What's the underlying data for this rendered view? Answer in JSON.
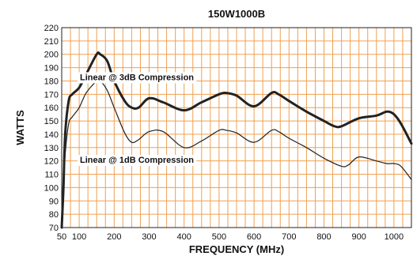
{
  "chart_data": {
    "type": "line",
    "title": "150W1000B",
    "xlabel": "FREQUENCY (MHz)",
    "ylabel": "WATTS",
    "xlim": [
      50,
      1050
    ],
    "ylim": [
      70,
      220
    ],
    "xticks": [
      50,
      100,
      200,
      300,
      400,
      500,
      600,
      700,
      800,
      900,
      1000
    ],
    "yticks": [
      70,
      80,
      90,
      100,
      110,
      120,
      130,
      140,
      150,
      160,
      170,
      180,
      190,
      200,
      210,
      220
    ],
    "grid": true,
    "colors": {
      "grid": "#f0a050",
      "border": "#222222",
      "line": "#222222",
      "background": "#ffffff"
    },
    "series": [
      {
        "name": "Linear @ 3dB Compression",
        "x": [
          50,
          55,
          60,
          70,
          80,
          100,
          120,
          150,
          160,
          180,
          200,
          230,
          250,
          270,
          300,
          340,
          400,
          450,
          500,
          520,
          550,
          600,
          650,
          670,
          700,
          750,
          800,
          830,
          850,
          900,
          950,
          980,
          1000,
          1020,
          1050
        ],
        "y": [
          70,
          100,
          140,
          165,
          170,
          175,
          185,
          200,
          200,
          195,
          180,
          165,
          160,
          160,
          167,
          164,
          158,
          164,
          170,
          171,
          169,
          161,
          171,
          170,
          165,
          157,
          150,
          146,
          146,
          152,
          154,
          157,
          155,
          148,
          133
        ]
      },
      {
        "name": "Linear @ 1dB Compression",
        "x": [
          50,
          55,
          60,
          70,
          80,
          100,
          120,
          150,
          160,
          180,
          200,
          230,
          250,
          270,
          300,
          340,
          400,
          450,
          500,
          520,
          550,
          600,
          650,
          670,
          700,
          750,
          800,
          850,
          870,
          900,
          950,
          980,
          1000,
          1020,
          1050
        ],
        "y": [
          70,
          100,
          125,
          148,
          153,
          160,
          171,
          180,
          180,
          173,
          160,
          141,
          134,
          136,
          142,
          142,
          130,
          135,
          143,
          143,
          141,
          134,
          143,
          142,
          137,
          130,
          122,
          116,
          117,
          123,
          120,
          118,
          118,
          116,
          106
        ]
      }
    ],
    "annotations": [
      {
        "text": "Linear @ 3dB Compression",
        "x": 265,
        "y": 183
      },
      {
        "text": "Linear @ 1dB Compression",
        "x": 265,
        "y": 121
      }
    ]
  }
}
